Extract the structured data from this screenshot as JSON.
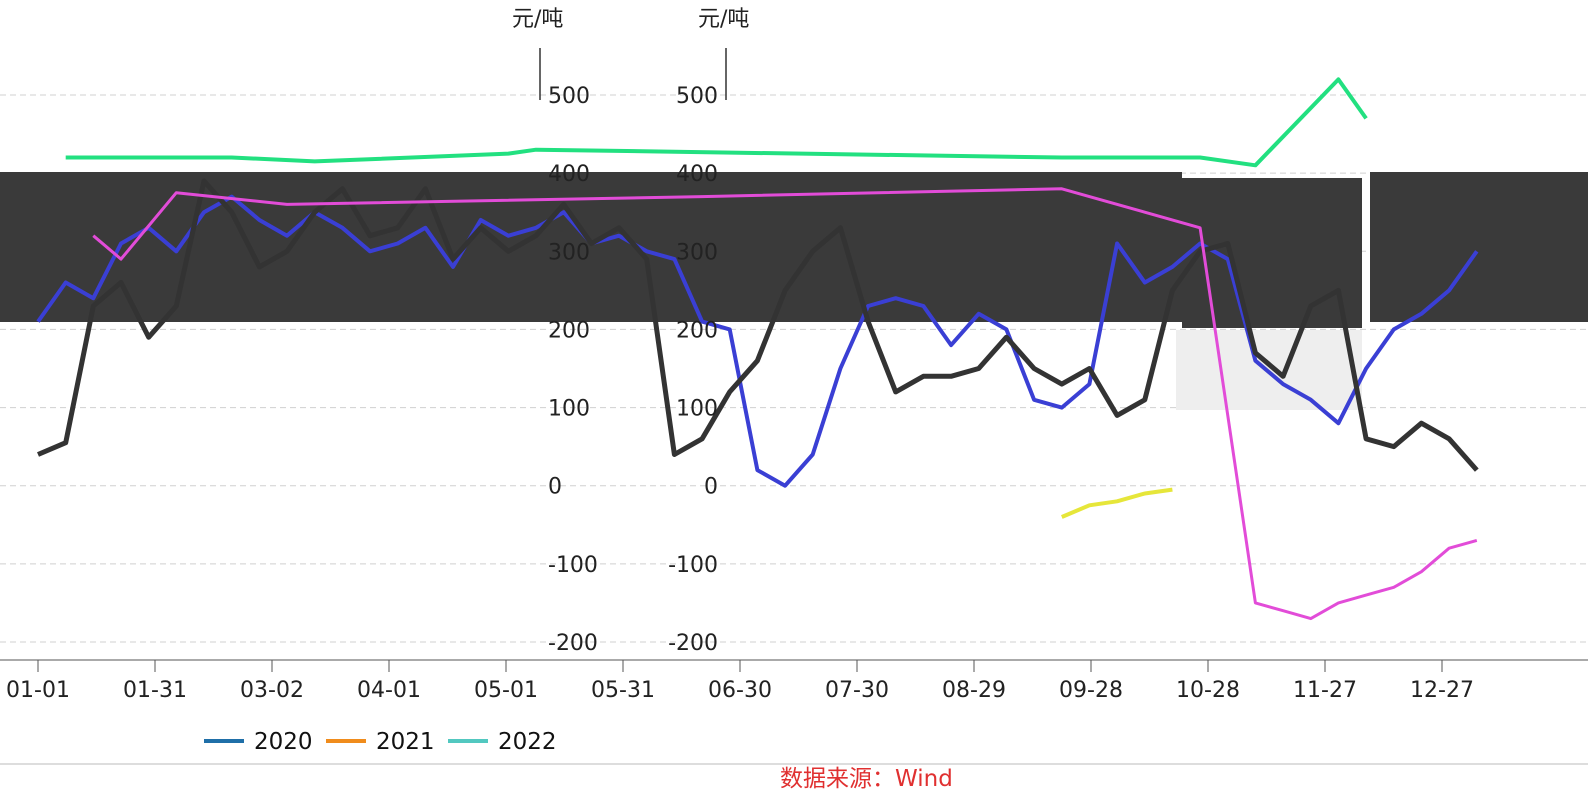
{
  "chart_data": {
    "type": "line",
    "units": [
      "元/吨",
      "元/吨"
    ],
    "y_ticks": [
      500,
      400,
      300,
      200,
      100,
      0,
      -100,
      -200
    ],
    "ylim": [
      -250,
      560
    ],
    "x_tick_labels": [
      "01-01",
      "01-31",
      "03-02",
      "04-01",
      "05-01",
      "05-31",
      "06-30",
      "07-30",
      "08-29",
      "09-28",
      "10-28",
      "11-27",
      "12-27"
    ],
    "legend": [
      {
        "name": "2020",
        "color": "#1f6fa8"
      },
      {
        "name": "2021",
        "color": "#f08c1c"
      },
      {
        "name": "2022",
        "color": "#52c8c0"
      }
    ],
    "series_colors": {
      "black": "#333333",
      "blue": "#3a3fd4",
      "green": "#22e080",
      "magenta": "#e24cd8",
      "yellow": "#e6e63a"
    },
    "black_series": {
      "x": [
        "01-01",
        "01-08",
        "01-15",
        "01-22",
        "01-29",
        "02-05",
        "02-12",
        "02-19",
        "02-26",
        "03-05",
        "03-12",
        "03-19",
        "03-26",
        "04-02",
        "04-09",
        "04-16",
        "04-23",
        "04-30",
        "05-07",
        "05-14",
        "05-21",
        "05-28",
        "06-04",
        "06-11",
        "06-18",
        "06-25",
        "07-02",
        "07-09",
        "07-16",
        "07-23",
        "07-30",
        "08-06",
        "08-13",
        "08-20",
        "08-27",
        "09-03",
        "09-10",
        "09-17",
        "09-24",
        "10-01",
        "10-08",
        "10-15",
        "10-22",
        "10-29",
        "11-05",
        "11-12",
        "11-19",
        "11-26",
        "12-03",
        "12-10",
        "12-17",
        "12-24",
        "12-31"
      ],
      "y": [
        40,
        55,
        230,
        260,
        190,
        230,
        390,
        350,
        280,
        300,
        350,
        380,
        320,
        330,
        380,
        290,
        330,
        300,
        320,
        360,
        310,
        330,
        290,
        40,
        60,
        120,
        160,
        250,
        300,
        330,
        210,
        120,
        140,
        140,
        150,
        190,
        150,
        130,
        150,
        90,
        110,
        250,
        300,
        310,
        170,
        140,
        230,
        250,
        60,
        50,
        80,
        60,
        20
      ]
    },
    "blue_series": {
      "x": [
        "01-01",
        "01-08",
        "01-15",
        "01-22",
        "01-29",
        "02-05",
        "02-12",
        "02-19",
        "02-26",
        "03-05",
        "03-12",
        "03-19",
        "03-26",
        "04-02",
        "04-09",
        "04-16",
        "04-23",
        "04-30",
        "05-07",
        "05-14",
        "05-21",
        "05-28",
        "06-04",
        "06-11",
        "06-18",
        "06-25",
        "07-02",
        "07-09",
        "07-16",
        "07-23",
        "07-30",
        "08-06",
        "08-13",
        "08-20",
        "08-27",
        "09-03",
        "09-10",
        "09-17",
        "09-24",
        "10-01",
        "10-08",
        "10-15",
        "10-22",
        "10-29",
        "11-05",
        "11-12",
        "11-19",
        "11-26",
        "12-03",
        "12-10",
        "12-17",
        "12-24",
        "12-31"
      ],
      "y": [
        210,
        260,
        240,
        310,
        330,
        300,
        350,
        370,
        340,
        320,
        350,
        330,
        300,
        310,
        330,
        280,
        340,
        320,
        330,
        350,
        310,
        320,
        300,
        290,
        210,
        200,
        20,
        0,
        40,
        150,
        230,
        240,
        230,
        180,
        220,
        200,
        110,
        100,
        130,
        310,
        260,
        280,
        310,
        290,
        160,
        130,
        110,
        80,
        150,
        200,
        220,
        250,
        300
      ]
    },
    "green_series": {
      "x": [
        "01-08",
        "02-19",
        "03-12",
        "04-30",
        "05-07",
        "09-17",
        "10-22",
        "11-05",
        "11-26",
        "12-03"
      ],
      "y": [
        420,
        420,
        415,
        425,
        430,
        420,
        420,
        410,
        520,
        470
      ]
    },
    "magenta_series": {
      "x": [
        "01-15",
        "01-22",
        "02-05",
        "03-05",
        "06-18",
        "09-17",
        "10-22",
        "11-05",
        "11-12",
        "11-19",
        "11-26",
        "12-03",
        "12-10",
        "12-17",
        "12-24",
        "12-31"
      ],
      "y": [
        320,
        290,
        375,
        360,
        370,
        380,
        330,
        -150,
        -160,
        -170,
        -150,
        -140,
        -130,
        -110,
        -80,
        -70
      ]
    },
    "yellow_series": {
      "x": [
        "09-17",
        "09-24",
        "10-01",
        "10-08",
        "10-15"
      ],
      "y": [
        -40,
        -25,
        -20,
        -10,
        -5
      ]
    },
    "source": "数据来源：Wind"
  }
}
